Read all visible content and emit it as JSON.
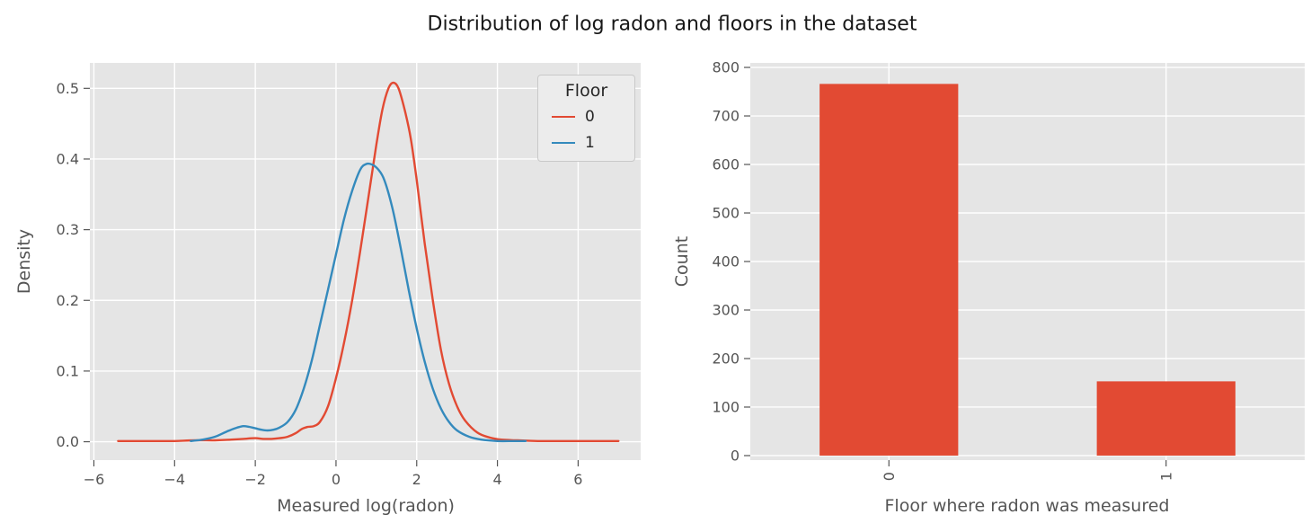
{
  "figure": {
    "title": "Distribution of log radon and floors in the dataset"
  },
  "colors": {
    "axes_bg": "#e5e5e5",
    "grid": "#ffffff",
    "tick": "#555555",
    "tick_text": "#555555",
    "label_text": "#555555",
    "title_text": "#171717",
    "red": "#e24a33",
    "blue": "#348abd",
    "legend_bg": "#ececec",
    "legend_border": "#c9c9c9"
  },
  "chart_data": [
    {
      "type": "line",
      "subtype": "kde",
      "xlabel": "Measured log(radon)",
      "ylabel": "Density",
      "xlim": [
        -6.1,
        7.55
      ],
      "ylim": [
        -0.026,
        0.536
      ],
      "xticks": [
        -6,
        -4,
        -2,
        0,
        2,
        4,
        6
      ],
      "xtick_labels": [
        "−6",
        "−4",
        "−2",
        "0",
        "2",
        "4",
        "6"
      ],
      "yticks": [
        0.0,
        0.1,
        0.2,
        0.3,
        0.4,
        0.5
      ],
      "ytick_labels": [
        "0.0",
        "0.1",
        "0.2",
        "0.3",
        "0.4",
        "0.5"
      ],
      "grid": true,
      "legend": {
        "title": "Floor",
        "position": "upper right",
        "entries": [
          {
            "label": "0",
            "color": "#e24a33"
          },
          {
            "label": "1",
            "color": "#348abd"
          }
        ]
      },
      "series": [
        {
          "name": "0",
          "color": "#e24a33",
          "x": [
            -5.4,
            -5.0,
            -4.5,
            -4.0,
            -3.5,
            -3.0,
            -2.6,
            -2.3,
            -2.0,
            -1.8,
            -1.6,
            -1.4,
            -1.2,
            -1.0,
            -0.85,
            -0.7,
            -0.55,
            -0.4,
            -0.2,
            0.0,
            0.2,
            0.4,
            0.6,
            0.8,
            1.0,
            1.15,
            1.3,
            1.42,
            1.55,
            1.7,
            1.85,
            2.0,
            2.2,
            2.4,
            2.6,
            2.8,
            3.0,
            3.2,
            3.5,
            3.8,
            4.1,
            4.5,
            5.0,
            5.5,
            6.0,
            6.5,
            7.0
          ],
          "y": [
            0.001,
            0.001,
            0.001,
            0.001,
            0.002,
            0.002,
            0.003,
            0.004,
            0.005,
            0.004,
            0.004,
            0.005,
            0.007,
            0.012,
            0.018,
            0.021,
            0.022,
            0.028,
            0.05,
            0.09,
            0.14,
            0.2,
            0.27,
            0.345,
            0.42,
            0.47,
            0.5,
            0.508,
            0.5,
            0.47,
            0.43,
            0.37,
            0.28,
            0.2,
            0.13,
            0.082,
            0.05,
            0.03,
            0.013,
            0.006,
            0.003,
            0.002,
            0.001,
            0.001,
            0.001,
            0.001,
            0.001
          ]
        },
        {
          "name": "1",
          "color": "#348abd",
          "x": [
            -3.6,
            -3.3,
            -3.0,
            -2.8,
            -2.6,
            -2.45,
            -2.3,
            -2.15,
            -2.0,
            -1.85,
            -1.7,
            -1.55,
            -1.4,
            -1.2,
            -1.0,
            -0.8,
            -0.6,
            -0.4,
            -0.2,
            0.0,
            0.2,
            0.4,
            0.6,
            0.75,
            0.9,
            1.05,
            1.2,
            1.4,
            1.6,
            1.8,
            2.0,
            2.2,
            2.4,
            2.6,
            2.8,
            3.0,
            3.3,
            3.6,
            4.0,
            4.4,
            4.7
          ],
          "y": [
            0.001,
            0.003,
            0.007,
            0.012,
            0.017,
            0.02,
            0.022,
            0.021,
            0.019,
            0.017,
            0.016,
            0.017,
            0.02,
            0.028,
            0.045,
            0.075,
            0.115,
            0.165,
            0.215,
            0.265,
            0.315,
            0.355,
            0.385,
            0.393,
            0.392,
            0.385,
            0.37,
            0.33,
            0.275,
            0.215,
            0.16,
            0.113,
            0.075,
            0.047,
            0.028,
            0.016,
            0.007,
            0.003,
            0.001,
            0.001,
            0.001
          ]
        }
      ]
    },
    {
      "type": "bar",
      "xlabel": "Floor where radon was measured",
      "ylabel": "Count",
      "categories": [
        "0",
        "1"
      ],
      "values": [
        766,
        153
      ],
      "bar_color": "#e24a33",
      "bar_width": 0.5,
      "yticks": [
        0,
        100,
        200,
        300,
        400,
        500,
        600,
        700,
        800
      ],
      "ytick_labels": [
        "0",
        "100",
        "200",
        "300",
        "400",
        "500",
        "600",
        "700",
        "800"
      ],
      "ylim": [
        -9.3,
        809.3
      ],
      "grid": true,
      "xtick_rotation": 90
    }
  ]
}
